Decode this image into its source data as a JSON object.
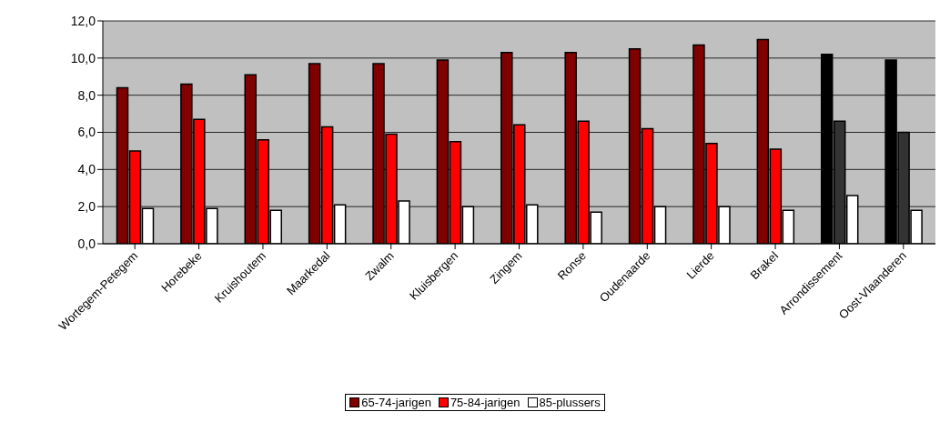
{
  "chart_data": {
    "type": "bar",
    "categories": [
      "Wortegem-Petegem",
      "Horebeke",
      "Kruishoutem",
      "Maarkedal",
      "Zwalm",
      "Kluisbergen",
      "Zingem",
      "Ronse",
      "Oudenaarde",
      "Lierde",
      "Brakel",
      "Arrondissement",
      "Oost-Vlaanderen"
    ],
    "series": [
      {
        "name": "65-74-jarigen",
        "color": "#800000",
        "colors": [
          "#800000",
          "#800000",
          "#800000",
          "#800000",
          "#800000",
          "#800000",
          "#800000",
          "#800000",
          "#800000",
          "#800000",
          "#800000",
          "#000000",
          "#000000"
        ],
        "values": [
          8.4,
          8.6,
          9.1,
          9.7,
          9.7,
          9.9,
          10.3,
          10.3,
          10.5,
          10.7,
          11.0,
          10.2,
          9.9
        ]
      },
      {
        "name": "75-84-jarigen",
        "color": "#ff0000",
        "colors": [
          "#ff0000",
          "#ff0000",
          "#ff0000",
          "#ff0000",
          "#ff0000",
          "#ff0000",
          "#ff0000",
          "#ff0000",
          "#ff0000",
          "#ff0000",
          "#ff0000",
          "#333333",
          "#333333"
        ],
        "values": [
          5.0,
          6.7,
          5.6,
          6.3,
          5.9,
          5.5,
          6.4,
          6.6,
          6.2,
          5.4,
          5.1,
          6.6,
          6.0
        ]
      },
      {
        "name": "85-plussers",
        "color": "#ffffff",
        "values": [
          1.9,
          1.9,
          1.8,
          2.1,
          2.3,
          2.0,
          2.1,
          1.7,
          2.0,
          2.0,
          1.8,
          2.6,
          1.8
        ]
      }
    ],
    "ylim": [
      0,
      12
    ],
    "yticks": [
      {
        "value": 0,
        "label": "0,0"
      },
      {
        "value": 2,
        "label": "2,0"
      },
      {
        "value": 4,
        "label": "4,0"
      },
      {
        "value": 6,
        "label": "6,0"
      },
      {
        "value": 8,
        "label": "8,0"
      },
      {
        "value": 10,
        "label": "10,0"
      },
      {
        "value": 12,
        "label": "12,0"
      }
    ],
    "grid": "y",
    "legend": "bottom"
  }
}
